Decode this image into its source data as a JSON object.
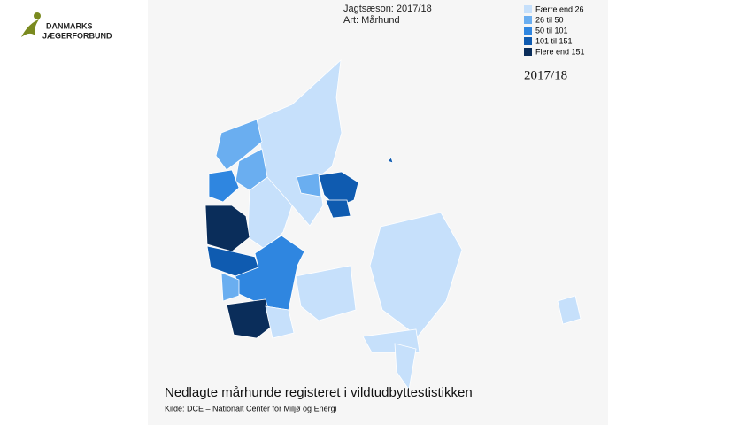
{
  "logo": {
    "line1": "DANMARKS",
    "line2": "JÆGERFORBUND"
  },
  "header": {
    "season": "Jagtsæson: 2017/18",
    "species": "Art: Mårhund"
  },
  "legend": [
    {
      "label": "Færre end 26",
      "color": "#c6e0fb"
    },
    {
      "label": "26 til 50",
      "color": "#6aaef0"
    },
    {
      "label": "50 til 101",
      "color": "#2f86e0"
    },
    {
      "label": "101 til 151",
      "color": "#0f5bb0"
    },
    {
      "label": "Flere end 151",
      "color": "#0a2d5a"
    }
  ],
  "year_label": "2017/18",
  "caption": {
    "title": "Nedlagte mårhunde registeret i vildtudbyttestistikken",
    "source": "Kilde: DCE – Nationalt Center for Miljø og Energi"
  }
}
